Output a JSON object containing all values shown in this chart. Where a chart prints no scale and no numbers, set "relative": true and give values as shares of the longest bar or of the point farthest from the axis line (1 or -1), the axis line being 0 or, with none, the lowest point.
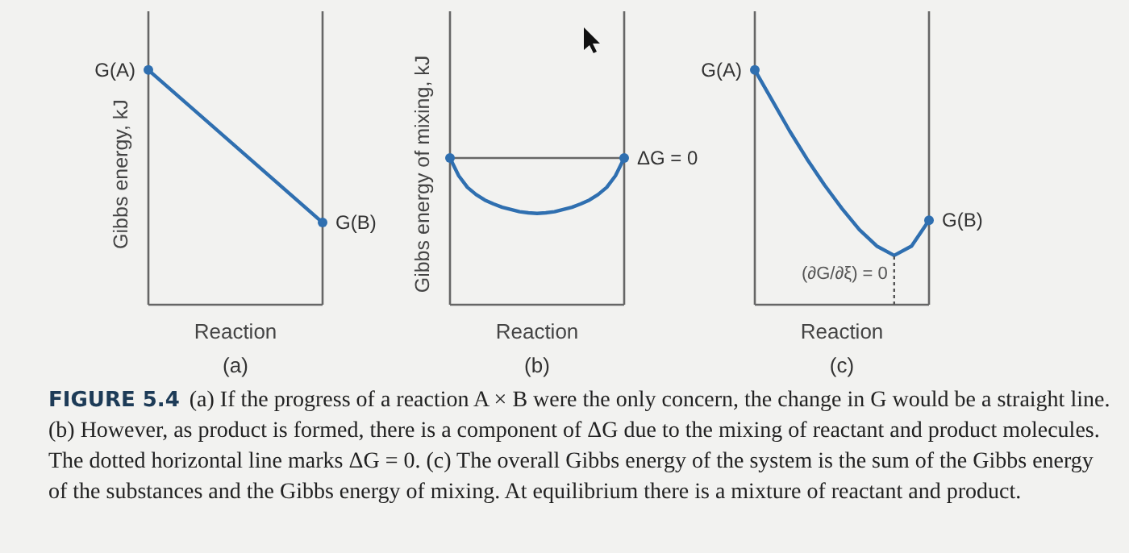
{
  "chart_data": [
    {
      "type": "line",
      "title": "(a)",
      "xlabel": "Reaction",
      "ylabel": "Gibbs energy, kJ",
      "relative": true,
      "marker": "circle",
      "categories": [
        null,
        null
      ],
      "series": [
        {
          "color": "#2f6fb0",
          "values": [
            1,
            0.35
          ]
        }
      ],
      "annotations": [
        "G(A)",
        "G(B)"
      ]
    },
    {
      "type": "line",
      "title": "(b)",
      "xlabel": "Reaction",
      "ylabel": "Gibbs energy of mixing, kJ",
      "relative": true,
      "categories": [
        null,
        null,
        null,
        null,
        null,
        null,
        null,
        null,
        null,
        null,
        null,
        null,
        null,
        null,
        null,
        null,
        null,
        null,
        null,
        null,
        null
      ],
      "series": [
        {
          "color": "#2f6fb0",
          "values": [
            0,
            -0.32,
            -0.53,
            -0.66,
            -0.76,
            -0.83,
            -0.89,
            -0.93,
            -0.97,
            -0.99,
            -1,
            -0.99,
            -0.97,
            -0.93,
            -0.89,
            -0.83,
            -0.76,
            -0.66,
            -0.53,
            -0.32,
            0
          ]
        }
      ],
      "ref_lines": [
        {
          "axis": "y",
          "value": 0,
          "label": "ΔG = 0",
          "color": "#666666",
          "line_style": "solid"
        }
      ]
    },
    {
      "type": "line",
      "title": "(c)",
      "xlabel": "Reaction",
      "relative": true,
      "categories": [
        null,
        null,
        null,
        null,
        null,
        null,
        null,
        null,
        null,
        null,
        null
      ],
      "series": [
        {
          "color": "#2f6fb0",
          "values": [
            1,
            0.87,
            0.74,
            0.62,
            0.51,
            0.41,
            0.32,
            0.25,
            0.21,
            0.25,
            0.36
          ]
        }
      ],
      "annotations": [
        "G(A)",
        "G(B)",
        "(∂G/∂ξ) = 0"
      ]
    },
    {
      "type": "other",
      "title": "FIGURE 5.4",
      "annotations": [
        "(a) If the progress of a reaction A × B were the only concern, the change in G would be a straight line. (b) However, as product is formed, there is a component of ΔG due to the mixing of reactant and product molecules. The dotted horizontal line marks ΔG = 0. (c) The overall Gibbs energy of the system is the sum of the Gibbs energy of the substances and the Gibbs energy of mixing. At equilibrium there is a mixture of reactant and product."
      ]
    }
  ]
}
